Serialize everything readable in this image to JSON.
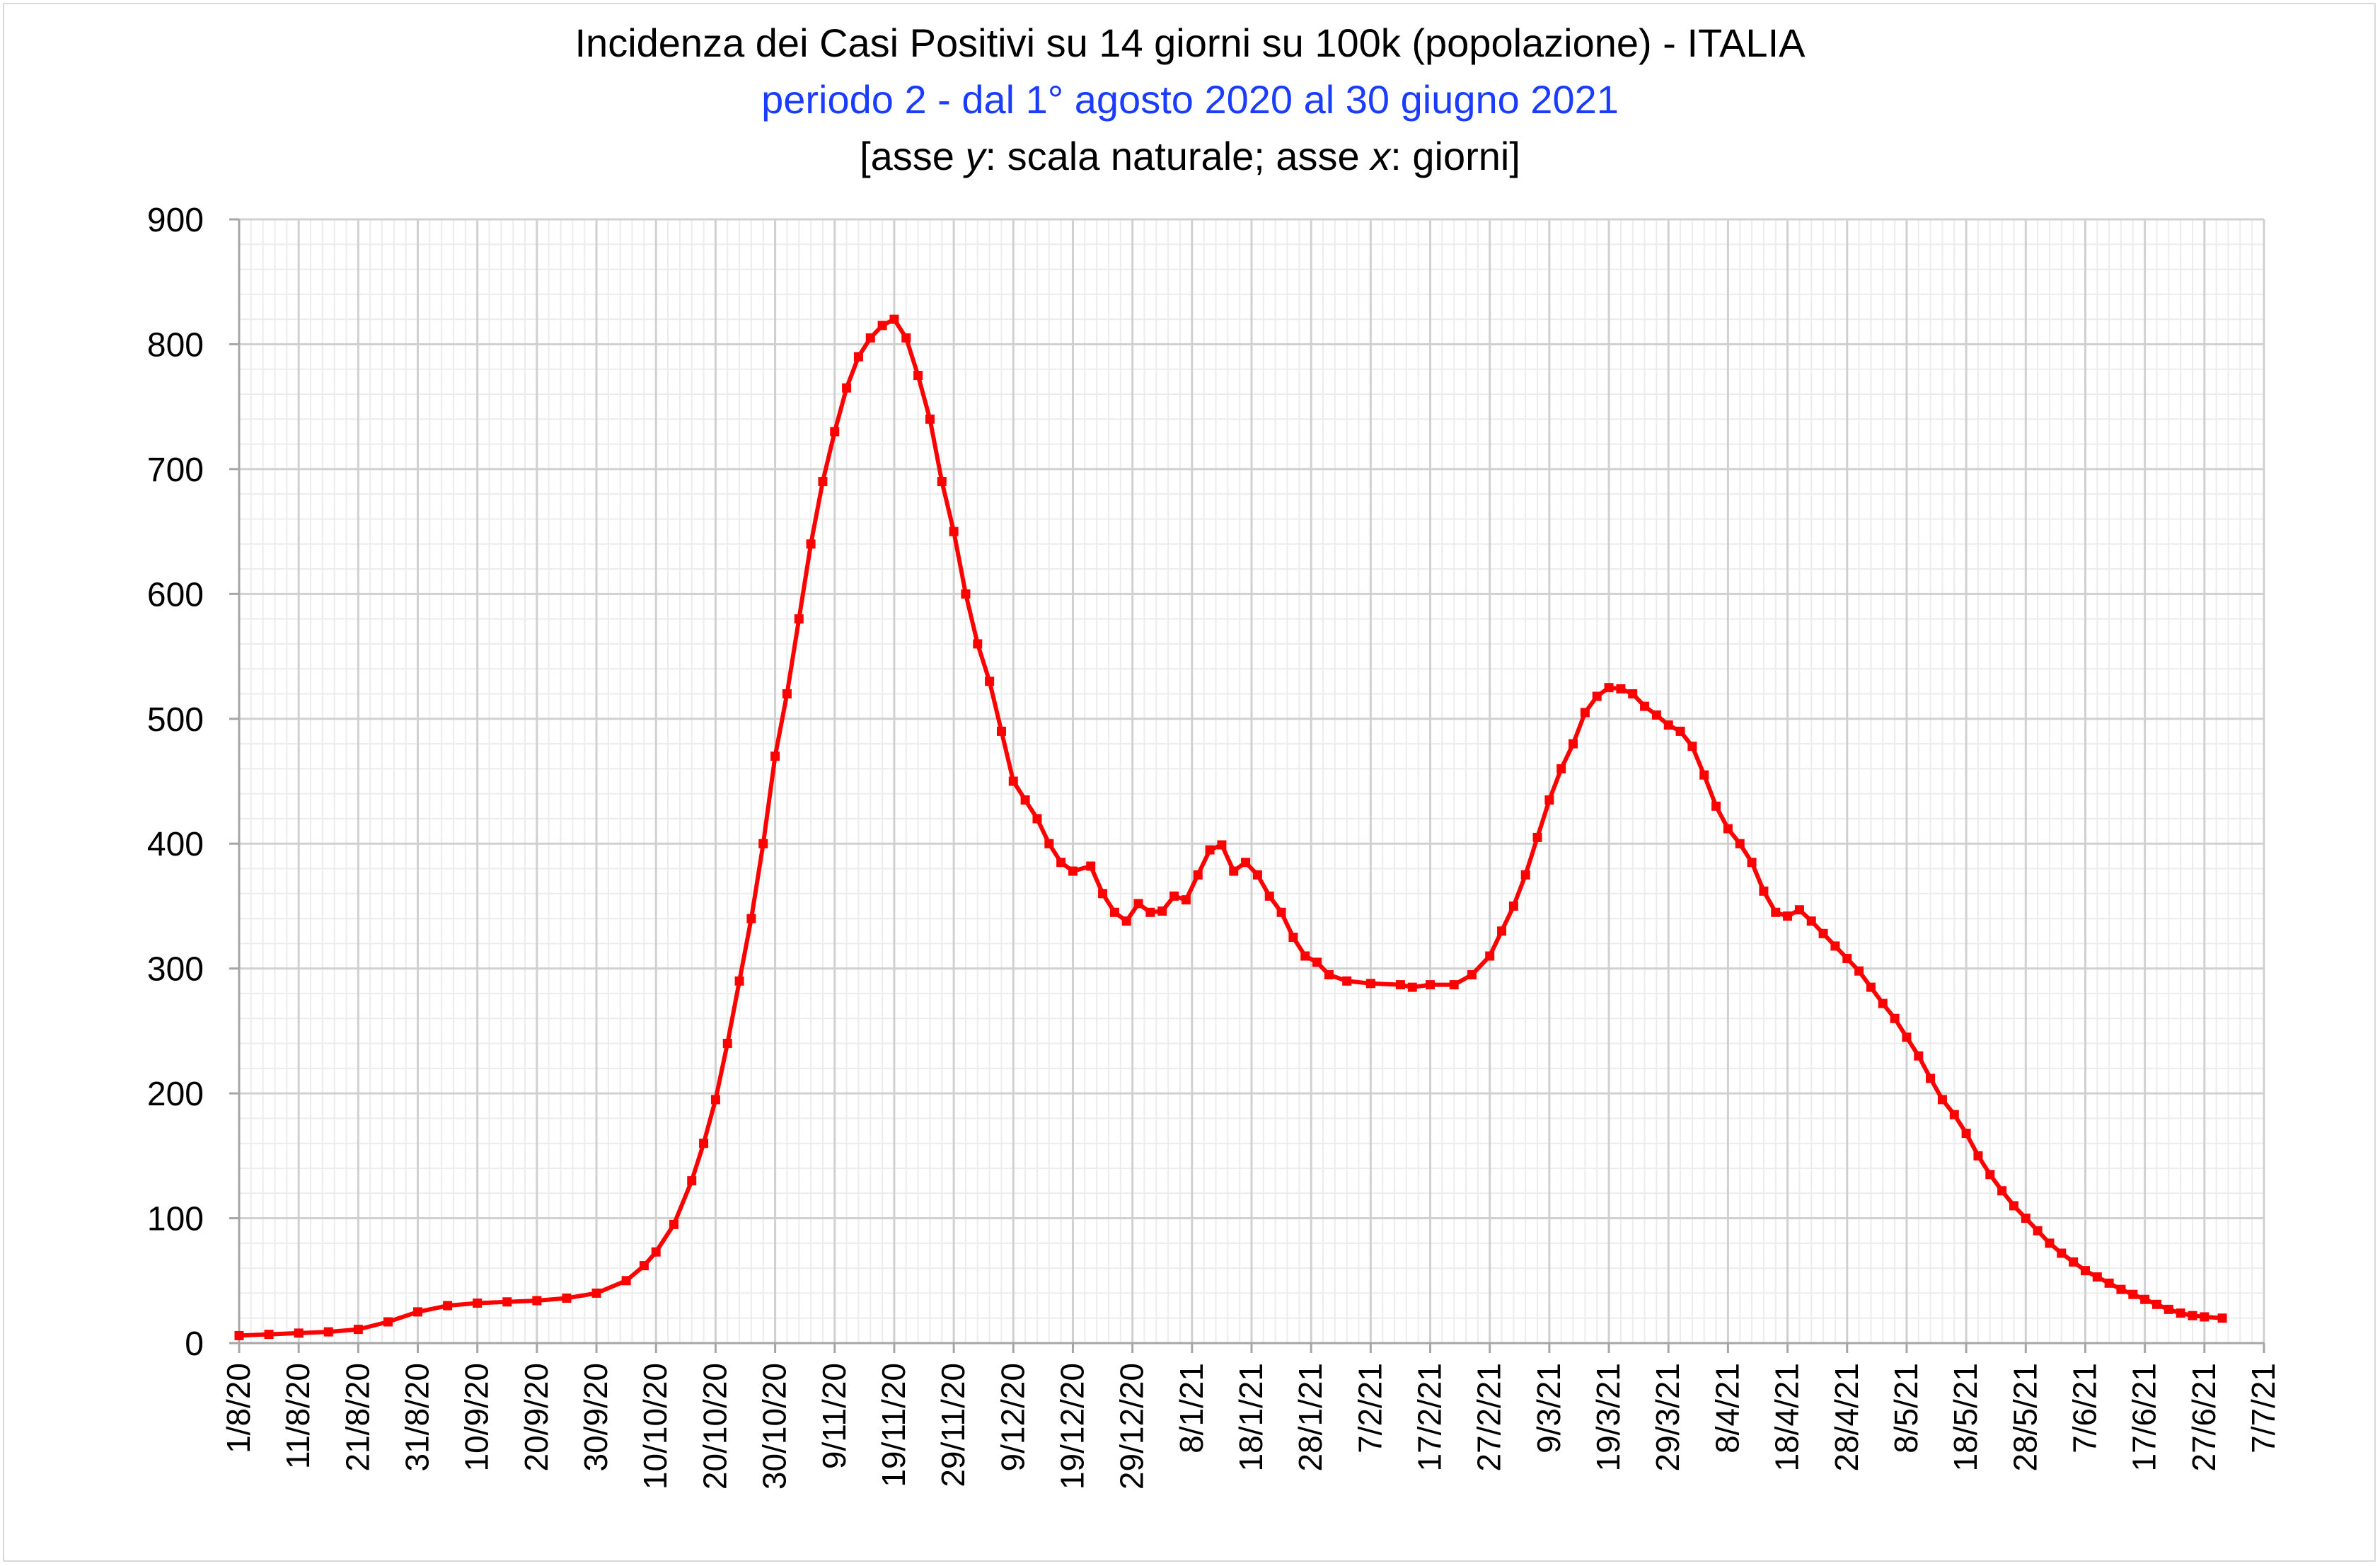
{
  "chart_data": {
    "type": "line",
    "title": "Incidenza dei Casi Positivi su 14 giorni su 100k (popolazione) - ITALIA",
    "subtitle": "periodo 2 - dal 1° agosto 2020 al 30 giugno 2021",
    "subtitle2_parts": [
      "[asse ",
      "y",
      ": scala naturale; asse ",
      "x",
      ": giorni]"
    ],
    "xlabel": "",
    "ylabel": "",
    "ylim": [
      0,
      900
    ],
    "yticks": [
      "0",
      "100",
      "200",
      "300",
      "400",
      "500",
      "600",
      "700",
      "800",
      "900"
    ],
    "xticks": [
      "1/8/20",
      "11/8/20",
      "21/8/20",
      "31/8/20",
      "10/9/20",
      "20/9/20",
      "30/9/20",
      "10/10/20",
      "20/10/20",
      "30/10/20",
      "9/11/20",
      "19/11/20",
      "29/11/20",
      "9/12/20",
      "19/12/20",
      "29/12/20",
      "8/1/21",
      "18/1/21",
      "28/1/21",
      "7/2/21",
      "17/2/21",
      "27/2/21",
      "9/3/21",
      "19/3/21",
      "29/3/21",
      "8/4/21",
      "18/4/21",
      "28/4/21",
      "8/5/21",
      "18/5/21",
      "28/5/21",
      "7/6/21",
      "17/6/21",
      "27/6/21",
      "7/7/21"
    ],
    "x_range": [
      "1/8/20",
      "7/7/21"
    ],
    "grid": true,
    "series": [
      {
        "color": "#ff0000",
        "marker": "square",
        "points": [
          [
            "1/8/20",
            6
          ],
          [
            "6/8/20",
            7
          ],
          [
            "11/8/20",
            8
          ],
          [
            "16/8/20",
            9
          ],
          [
            "21/8/20",
            11
          ],
          [
            "26/8/20",
            17
          ],
          [
            "31/8/20",
            25
          ],
          [
            "5/9/20",
            30
          ],
          [
            "10/9/20",
            32
          ],
          [
            "15/9/20",
            33
          ],
          [
            "20/9/20",
            34
          ],
          [
            "25/9/20",
            36
          ],
          [
            "30/9/20",
            40
          ],
          [
            "5/10/20",
            50
          ],
          [
            "8/10/20",
            62
          ],
          [
            "10/10/20",
            73
          ],
          [
            "13/10/20",
            95
          ],
          [
            "16/10/20",
            130
          ],
          [
            "18/10/20",
            160
          ],
          [
            "20/10/20",
            195
          ],
          [
            "22/10/20",
            240
          ],
          [
            "24/10/20",
            290
          ],
          [
            "26/10/20",
            340
          ],
          [
            "28/10/20",
            400
          ],
          [
            "30/10/20",
            470
          ],
          [
            "1/11/20",
            520
          ],
          [
            "3/11/20",
            580
          ],
          [
            "5/11/20",
            640
          ],
          [
            "7/11/20",
            690
          ],
          [
            "9/11/20",
            730
          ],
          [
            "11/11/20",
            765
          ],
          [
            "13/11/20",
            790
          ],
          [
            "15/11/20",
            805
          ],
          [
            "17/11/20",
            815
          ],
          [
            "19/11/20",
            820
          ],
          [
            "21/11/20",
            805
          ],
          [
            "23/11/20",
            775
          ],
          [
            "25/11/20",
            740
          ],
          [
            "27/11/20",
            690
          ],
          [
            "29/11/20",
            650
          ],
          [
            "1/12/20",
            600
          ],
          [
            "3/12/20",
            560
          ],
          [
            "5/12/20",
            530
          ],
          [
            "7/12/20",
            490
          ],
          [
            "9/12/20",
            450
          ],
          [
            "11/12/20",
            435
          ],
          [
            "13/12/20",
            420
          ],
          [
            "15/12/20",
            400
          ],
          [
            "17/12/20",
            385
          ],
          [
            "19/12/20",
            378
          ],
          [
            "22/12/20",
            382
          ],
          [
            "24/12/20",
            360
          ],
          [
            "26/12/20",
            345
          ],
          [
            "28/12/20",
            338
          ],
          [
            "30/12/20",
            352
          ],
          [
            "1/1/21",
            345
          ],
          [
            "3/1/21",
            346
          ],
          [
            "5/1/21",
            358
          ],
          [
            "7/1/21",
            355
          ],
          [
            "9/1/21",
            375
          ],
          [
            "11/1/21",
            395
          ],
          [
            "13/1/21",
            399
          ],
          [
            "15/1/21",
            378
          ],
          [
            "17/1/21",
            385
          ],
          [
            "19/1/21",
            375
          ],
          [
            "21/1/21",
            358
          ],
          [
            "23/1/21",
            345
          ],
          [
            "25/1/21",
            325
          ],
          [
            "27/1/21",
            310
          ],
          [
            "29/1/21",
            305
          ],
          [
            "31/1/21",
            295
          ],
          [
            "3/2/21",
            290
          ],
          [
            "7/2/21",
            288
          ],
          [
            "12/2/21",
            287
          ],
          [
            "14/2/21",
            285
          ],
          [
            "17/2/21",
            287
          ],
          [
            "21/2/21",
            287
          ],
          [
            "24/2/21",
            295
          ],
          [
            "27/2/21",
            310
          ],
          [
            "1/3/21",
            330
          ],
          [
            "3/3/21",
            350
          ],
          [
            "5/3/21",
            375
          ],
          [
            "7/3/21",
            405
          ],
          [
            "9/3/21",
            435
          ],
          [
            "11/3/21",
            460
          ],
          [
            "13/3/21",
            480
          ],
          [
            "15/3/21",
            505
          ],
          [
            "17/3/21",
            518
          ],
          [
            "19/3/21",
            525
          ],
          [
            "21/3/21",
            524
          ],
          [
            "23/3/21",
            520
          ],
          [
            "25/3/21",
            510
          ],
          [
            "27/3/21",
            503
          ],
          [
            "29/3/21",
            495
          ],
          [
            "31/3/21",
            490
          ],
          [
            "2/4/21",
            478
          ],
          [
            "4/4/21",
            455
          ],
          [
            "6/4/21",
            430
          ],
          [
            "8/4/21",
            412
          ],
          [
            "10/4/21",
            400
          ],
          [
            "12/4/21",
            385
          ],
          [
            "14/4/21",
            362
          ],
          [
            "16/4/21",
            345
          ],
          [
            "18/4/21",
            342
          ],
          [
            "20/4/21",
            347
          ],
          [
            "22/4/21",
            338
          ],
          [
            "24/4/21",
            328
          ],
          [
            "26/4/21",
            318
          ],
          [
            "28/4/21",
            308
          ],
          [
            "30/4/21",
            298
          ],
          [
            "2/5/21",
            285
          ],
          [
            "4/5/21",
            272
          ],
          [
            "6/5/21",
            260
          ],
          [
            "8/5/21",
            245
          ],
          [
            "10/5/21",
            230
          ],
          [
            "12/5/21",
            212
          ],
          [
            "14/5/21",
            195
          ],
          [
            "16/5/21",
            183
          ],
          [
            "18/5/21",
            168
          ],
          [
            "20/5/21",
            150
          ],
          [
            "22/5/21",
            135
          ],
          [
            "24/5/21",
            122
          ],
          [
            "26/5/21",
            110
          ],
          [
            "28/5/21",
            100
          ],
          [
            "30/5/21",
            90
          ],
          [
            "1/6/21",
            80
          ],
          [
            "3/6/21",
            72
          ],
          [
            "5/6/21",
            65
          ],
          [
            "7/6/21",
            58
          ],
          [
            "9/6/21",
            53
          ],
          [
            "11/6/21",
            48
          ],
          [
            "13/6/21",
            43
          ],
          [
            "15/6/21",
            39
          ],
          [
            "17/6/21",
            35
          ],
          [
            "19/6/21",
            31
          ],
          [
            "21/6/21",
            27
          ],
          [
            "23/6/21",
            24
          ],
          [
            "25/6/21",
            22
          ],
          [
            "27/6/21",
            21
          ],
          [
            "30/6/21",
            20
          ]
        ]
      }
    ]
  }
}
